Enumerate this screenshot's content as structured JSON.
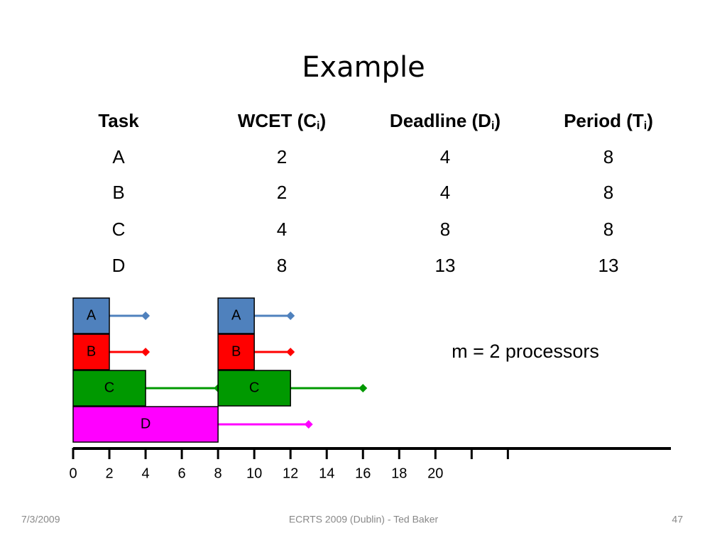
{
  "title": "Example",
  "table": {
    "header": [
      {
        "text": "Task"
      },
      {
        "text": "WCET (C",
        "sub": "i",
        "tail": ")"
      },
      {
        "text": "Deadline (D",
        "sub": "i",
        "tail": ")"
      },
      {
        "text": "Period (T",
        "sub": "i",
        "tail": ")"
      }
    ],
    "rows": [
      [
        "A",
        2,
        4,
        8
      ],
      [
        "B",
        2,
        4,
        8
      ],
      [
        "C",
        4,
        8,
        8
      ],
      [
        "D",
        8,
        13,
        13
      ]
    ]
  },
  "diagram": {
    "jobs": [
      {
        "task": "A",
        "start": 0,
        "end": 2,
        "deadline": 4,
        "color": "#4f81bd"
      },
      {
        "task": "A",
        "start": 8,
        "end": 10,
        "deadline": 12,
        "color": "#4f81bd"
      },
      {
        "task": "B",
        "start": 0,
        "end": 2,
        "deadline": 4,
        "color": "#ff0000"
      },
      {
        "task": "B",
        "start": 8,
        "end": 10,
        "deadline": 12,
        "color": "#ff0000"
      },
      {
        "task": "C",
        "start": 0,
        "end": 4,
        "deadline": 8,
        "color": "#009900"
      },
      {
        "task": "C",
        "start": 8,
        "end": 12,
        "deadline": 16,
        "color": "#009900"
      },
      {
        "task": "D",
        "start": 0,
        "end": 8,
        "deadline": 13,
        "color": "#ff00ff"
      }
    ],
    "xlim": [
      0,
      33
    ],
    "xticks": [
      0,
      2,
      4,
      6,
      8,
      10,
      12,
      14,
      16,
      18,
      20
    ],
    "unlabeled_ticks": [
      22,
      24
    ],
    "annotation": "m = 2 processors"
  },
  "footer": {
    "date": "7/3/2009",
    "center": "ECRTS 2009 (Dublin) - Ted Baker",
    "page": "47"
  }
}
